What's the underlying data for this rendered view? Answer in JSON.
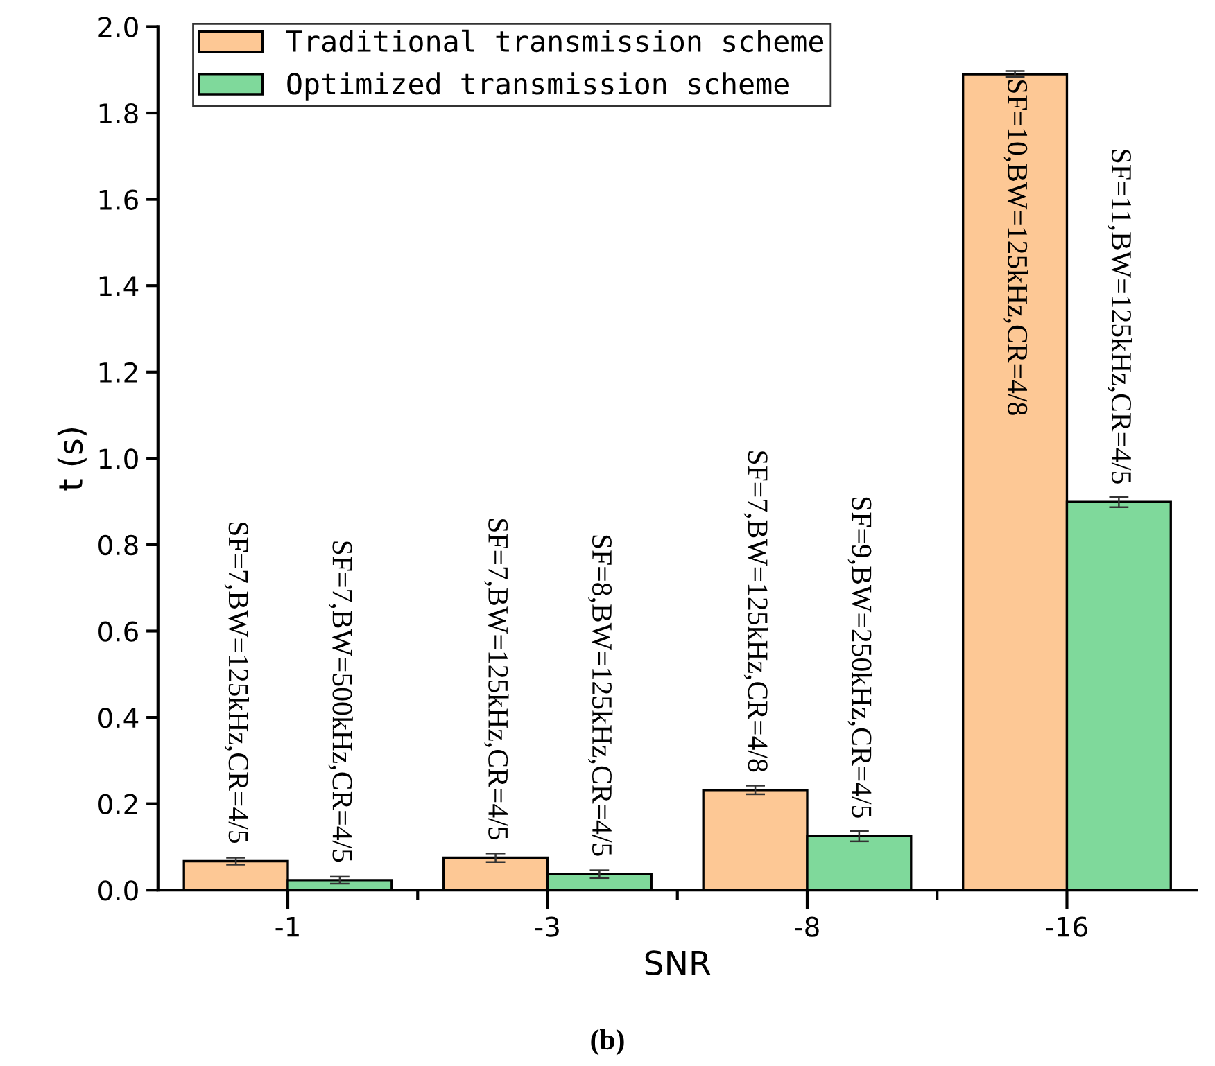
{
  "chart_data": {
    "type": "bar",
    "xlabel": "SNR",
    "ylabel": "t (s)",
    "categories": [
      "-1",
      "-3",
      "-8",
      "-16"
    ],
    "series": [
      {
        "name": "Traditional transmission scheme",
        "color": "#fdc895",
        "values": [
          0.067,
          0.075,
          0.232,
          1.89
        ],
        "errors": [
          0.008,
          0.01,
          0.01,
          0.007
        ]
      },
      {
        "name": "Optimized transmission scheme",
        "color": "#7fd99b",
        "values": [
          0.023,
          0.037,
          0.125,
          0.899
        ],
        "errors": [
          0.008,
          0.009,
          0.012,
          0.012
        ]
      }
    ],
    "ylim": [
      0,
      2
    ],
    "yticks": [
      {
        "value": 0,
        "label": "0.0"
      },
      0.2,
      0.4,
      0.6,
      0.8,
      {
        "value": 1,
        "label": "1.0"
      },
      1.2,
      1.4,
      1.6,
      1.8,
      {
        "value": 2,
        "label": "2.0"
      }
    ],
    "legend": "top left",
    "grid": false,
    "annotations": [
      "SF=7,BW=125kHz,CR=4/5",
      "SF=7,BW=500kHz,CR=4/5",
      "SF=7,BW=125kHz,CR=4/5",
      "SF=8,BW=125kHz,CR=4/5",
      "SF=7,BW=125kHz,CR=4/8",
      "SF=9,BW=250kHz,CR=4/5",
      "SF=10,BW=125kHz,CR=4/8",
      "SF=11,BW=125kHz,CR=4/5",
      "(b)"
    ]
  }
}
